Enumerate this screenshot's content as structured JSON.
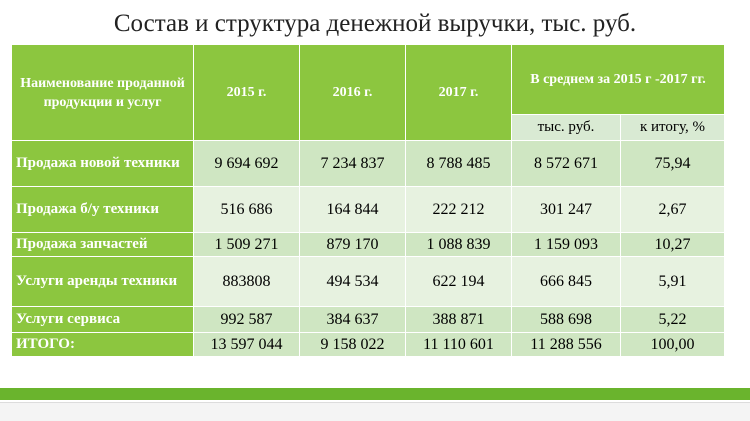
{
  "title": "Состав и структура денежной выручки, тыс. руб.",
  "table": {
    "header": {
      "name": "Наименование проданной продукции и услуг",
      "y2015": "2015 г.",
      "y2016": "2016 г.",
      "y2017": "2017 г.",
      "average": "В среднем за 2015 г -2017 гг.",
      "avg_value": "тыс. руб.",
      "avg_share": "к итогу, %"
    },
    "rows": [
      {
        "label": "Продажа новой техники",
        "v2015": "9 694 692",
        "v2016": "7 234 837",
        "v2017": "8 788 485",
        "avg": "8 572 671",
        "share": "75,94"
      },
      {
        "label": "Продажа б/у техники",
        "v2015": "516 686",
        "v2016": "164 844",
        "v2017": "222 212",
        "avg": "301 247",
        "share": "2,67"
      },
      {
        "label": "Продажа запчастей",
        "v2015": "1 509 271",
        "v2016": "879 170",
        "v2017": "1 088 839",
        "avg": "1 159 093",
        "share": "10,27"
      },
      {
        "label": "Услуги аренды техники",
        "v2015": "883808",
        "v2016": "494 534",
        "v2017": "622 194",
        "avg": "666 845",
        "share": "5,91"
      },
      {
        "label": "Услуги сервиса",
        "v2015": "992 587",
        "v2016": "384 637",
        "v2017": "388 871",
        "avg": "588 698",
        "share": "5,22"
      },
      {
        "label": "ИТОГО:",
        "v2015": "13 597 044",
        "v2016": "9 158 022",
        "v2017": "11 110 601",
        "avg": "11 288 556",
        "share": "100,00"
      }
    ]
  },
  "colors": {
    "header_green": "#8cc63f",
    "cell_light": "#e7f2e0",
    "cell_mid": "#cfe6c2",
    "bar_green": "#6ab42d"
  }
}
